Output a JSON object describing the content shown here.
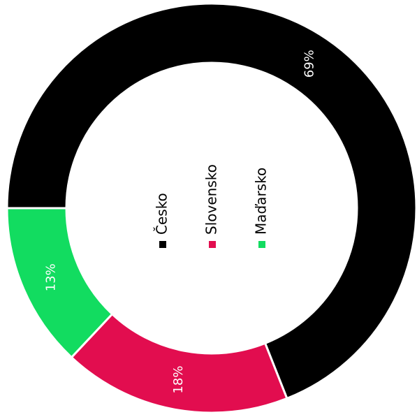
{
  "chart_data": {
    "type": "donut",
    "categories": [
      "Česko",
      "Slovensko",
      "Maďarsko"
    ],
    "values": [
      69,
      18,
      13
    ],
    "value_labels": [
      "69%",
      "18%",
      "13%"
    ],
    "colors": [
      "#000000",
      "#e20d4f",
      "#12dc60"
    ]
  }
}
